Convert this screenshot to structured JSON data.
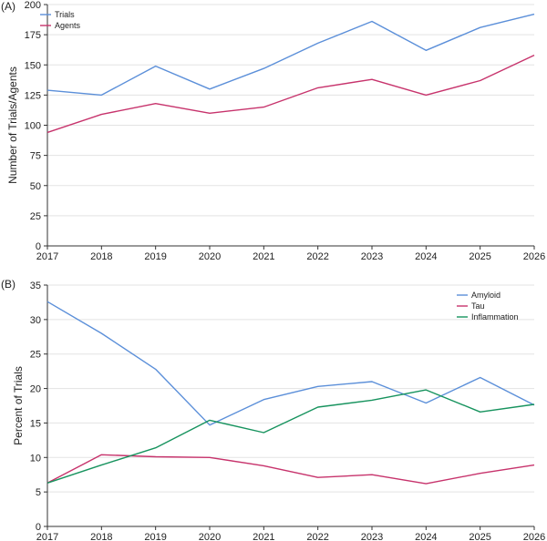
{
  "panels": [
    {
      "label": "(A)"
    },
    {
      "label": "(B)"
    }
  ],
  "chart_data": [
    {
      "type": "line",
      "title": "",
      "xlabel": "",
      "ylabel": "Number of Trials/Agents",
      "x": [
        2017,
        2018,
        2019,
        2020,
        2021,
        2022,
        2023,
        2024,
        2025,
        2026
      ],
      "xlim": [
        2017,
        2026
      ],
      "ylim": [
        0,
        200
      ],
      "yticks": [
        0,
        25,
        50,
        75,
        100,
        125,
        150,
        175,
        200
      ],
      "grid": "horizontal",
      "legend_position": "top-left",
      "series": [
        {
          "name": "Trials",
          "color": "#5b8fd9",
          "values": [
            129,
            125,
            149,
            130,
            147,
            168,
            186,
            162,
            181,
            192
          ]
        },
        {
          "name": "Agents",
          "color": "#c7336c",
          "values": [
            94,
            109,
            118,
            110,
            115,
            131,
            138,
            125,
            137,
            158
          ]
        }
      ]
    },
    {
      "type": "line",
      "title": "",
      "xlabel": "",
      "ylabel": "Percent of Trials",
      "x": [
        2017,
        2018,
        2019,
        2020,
        2021,
        2022,
        2023,
        2024,
        2025,
        2026
      ],
      "xlim": [
        2017,
        2026
      ],
      "ylim": [
        0,
        35
      ],
      "yticks": [
        0,
        5,
        10,
        15,
        20,
        25,
        30,
        35
      ],
      "grid": "horizontal",
      "legend_position": "top-right",
      "series": [
        {
          "name": "Amyloid",
          "color": "#5b8fd9",
          "values": [
            32.6,
            28.0,
            22.8,
            14.7,
            18.4,
            20.3,
            21.0,
            17.9,
            21.6,
            17.6
          ]
        },
        {
          "name": "Tau",
          "color": "#c7336c",
          "values": [
            6.3,
            10.4,
            10.1,
            10.0,
            8.8,
            7.1,
            7.5,
            6.2,
            7.7,
            8.9
          ]
        },
        {
          "name": "Inflammation",
          "color": "#17935e",
          "values": [
            6.3,
            8.9,
            11.4,
            15.4,
            13.6,
            17.3,
            18.3,
            19.8,
            16.6,
            17.7
          ]
        }
      ]
    }
  ]
}
